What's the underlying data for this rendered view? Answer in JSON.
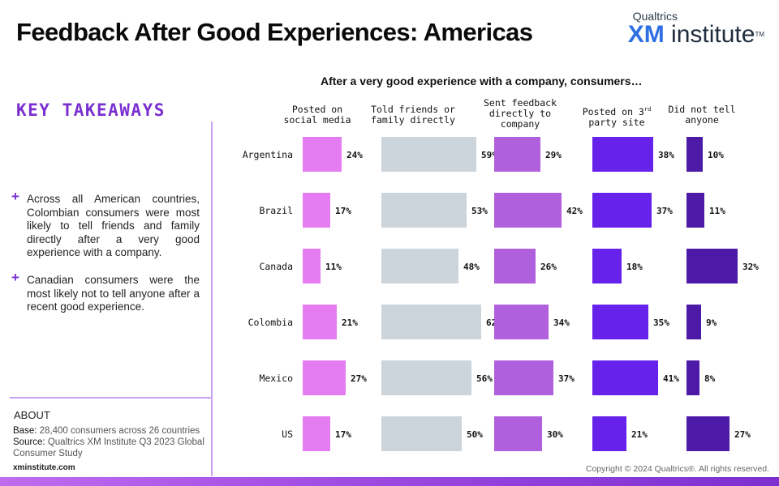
{
  "header": {
    "title": "Feedback After Good Experiences: Americas",
    "brand_top": "Qualtrics",
    "brand_xm": "XM",
    "brand_rest": " institute",
    "brand_tm": "TM"
  },
  "takeaways": {
    "title": "KEY TAKEAWAYS",
    "plus": "+",
    "bullets": [
      "Across all American countries, Colombian consumers were most likely to tell friends and family directly after a very good experience with a company.",
      "Canadian consumers were the most likely not to tell anyone after a recent good experience."
    ]
  },
  "about": {
    "title": "ABOUT",
    "base_label": "Base:",
    "base_text": " 28,400 consumers across 26 countries",
    "source_label": "Source:",
    "source_text": " Qualtrics XM Institute Q3 2023 Global",
    "source_text2": "Consumer Study",
    "url": "xminstitute.com"
  },
  "footer": {
    "copyright": "Copyright © 2024 Qualtrics®. All rights reserved."
  },
  "colors": {
    "social": "#e57cf2",
    "friends": "#ccd5dc",
    "feedback": "#b05fdd",
    "third_party": "#6621ea",
    "no_tell": "#4c1aa6",
    "accent": "#7a2fd0"
  },
  "chart_data": {
    "type": "bar",
    "title": "After a very good experience with a company, consumers…",
    "categories": [
      "Argentina",
      "Brazil",
      "Canada",
      "Colombia",
      "Mexico",
      "US"
    ],
    "series": [
      {
        "name": "Posted on social media",
        "values": [
          24,
          17,
          11,
          21,
          27,
          17
        ]
      },
      {
        "name": "Told friends or family directly",
        "values": [
          59,
          53,
          48,
          62,
          56,
          50
        ]
      },
      {
        "name": "Sent feedback directly to company",
        "values": [
          29,
          42,
          26,
          34,
          37,
          30
        ]
      },
      {
        "name": "Posted on 3rd party site",
        "values": [
          38,
          37,
          18,
          35,
          41,
          21
        ]
      },
      {
        "name": "Did not tell anyone",
        "values": [
          10,
          11,
          32,
          9,
          8,
          27
        ]
      }
    ],
    "value_suffix": "%",
    "header_lines": [
      [
        "Posted on",
        "social media"
      ],
      [
        "Told friends or",
        "family directly"
      ],
      [
        "Sent feedback",
        "directly to",
        "company"
      ],
      [
        "Posted on 3rd",
        "party site"
      ],
      [
        "Did not tell",
        "anyone"
      ]
    ]
  }
}
